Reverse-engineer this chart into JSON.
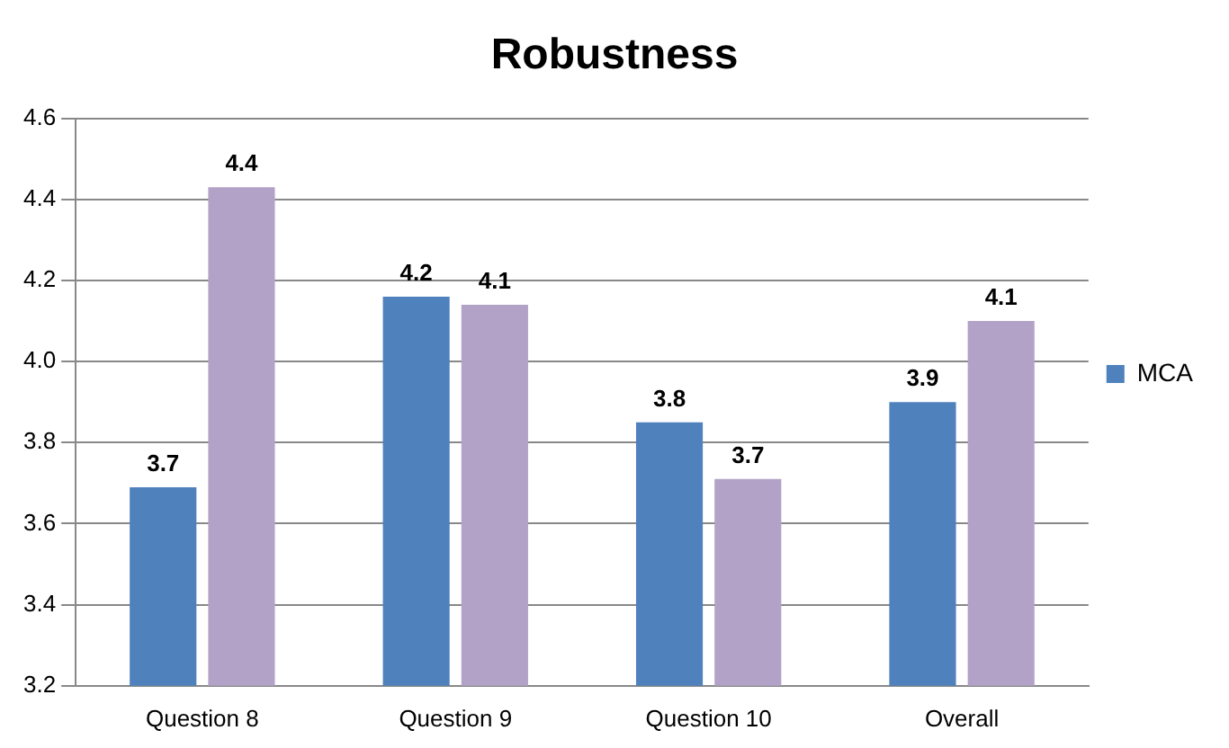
{
  "chart_data": {
    "type": "bar",
    "title": "Robustness",
    "categories": [
      "Question 8",
      "Question 9",
      "Question 10",
      "Overall"
    ],
    "series": [
      {
        "name": "MCA",
        "color": "#4f81bd",
        "values": [
          3.69,
          4.16,
          3.85,
          3.9
        ],
        "value_labels": [
          "3.7",
          "4.2",
          "3.8",
          "3.9"
        ]
      },
      {
        "color": "#b3a2c7",
        "values": [
          4.43,
          4.14,
          3.71,
          4.1
        ],
        "value_labels": [
          "4.4",
          "4.1",
          "3.7",
          "4.1"
        ]
      }
    ],
    "ylim": [
      3.2,
      4.6
    ],
    "yticks": [
      3.2,
      3.4,
      3.6,
      3.8,
      {
        "value": 4,
        "label": "4.0"
      },
      4.2,
      4.4,
      4.6
    ],
    "grid": "y",
    "legend": "right"
  }
}
